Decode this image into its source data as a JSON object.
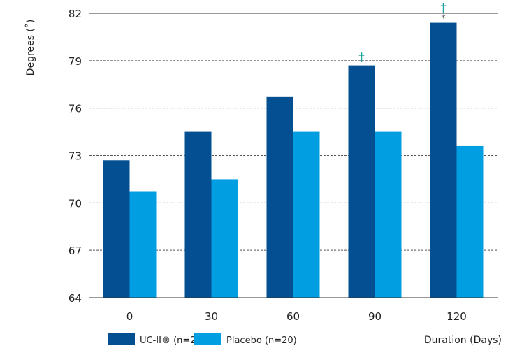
{
  "chart_data": {
    "type": "bar",
    "categories": [
      "0",
      "30",
      "60",
      "90",
      "120"
    ],
    "series": [
      {
        "name": "UC-II® (n=24)",
        "color": "#034f91",
        "values": [
          72.7,
          74.5,
          76.7,
          78.7,
          81.4
        ]
      },
      {
        "name": "Placebo (n=20)",
        "color": "#019ee2",
        "values": [
          70.7,
          71.5,
          74.5,
          74.5,
          73.6
        ]
      }
    ],
    "ylabel": "Degrees (˚)",
    "xlabel": "Duration (Days)",
    "ylim": [
      64,
      82
    ],
    "yticks": [
      "64",
      "67",
      "70",
      "73",
      "76",
      "79",
      "82"
    ],
    "grid": "horizontal-dashed",
    "legend_position": "bottom-left",
    "annotations": [
      {
        "category": "90",
        "series": "UC-II® (n=24)",
        "marks": [
          "†"
        ]
      },
      {
        "category": "120",
        "series": "UC-II® (n=24)",
        "marks": [
          "*",
          "†"
        ]
      }
    ]
  }
}
